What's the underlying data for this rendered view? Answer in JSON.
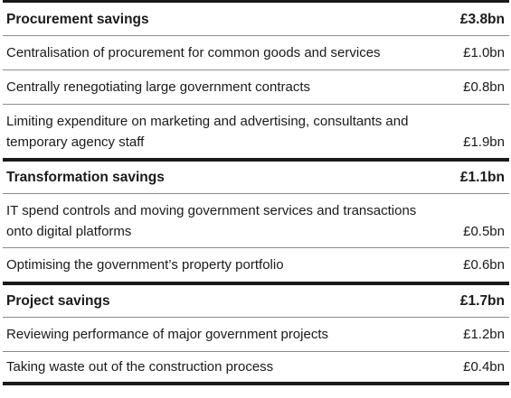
{
  "sections": [
    {
      "title": "Procurement savings",
      "total": "£3.8bn",
      "items": [
        {
          "label": "Centralisation of procurement for common goods and services",
          "amount": "£1.0bn"
        },
        {
          "label": "Centrally renegotiating large government contracts",
          "amount": "£0.8bn"
        },
        {
          "label": "Limiting expenditure on marketing and advertising, consultants and temporary agency staff",
          "amount": "£1.9bn"
        }
      ]
    },
    {
      "title": "Transformation savings",
      "total": "£1.1bn",
      "items": [
        {
          "label": "IT spend controls and moving government services and transactions onto digital platforms",
          "amount": "£0.5bn"
        },
        {
          "label": "Optimising the government’s property portfolio",
          "amount": "£0.6bn"
        }
      ]
    },
    {
      "title": "Project savings",
      "total": "£1.7bn",
      "items": [
        {
          "label": "Reviewing performance of major government projects",
          "amount": "£1.2bn"
        },
        {
          "label": "Taking waste out of the construction process",
          "amount": "£0.4bn"
        }
      ]
    }
  ]
}
